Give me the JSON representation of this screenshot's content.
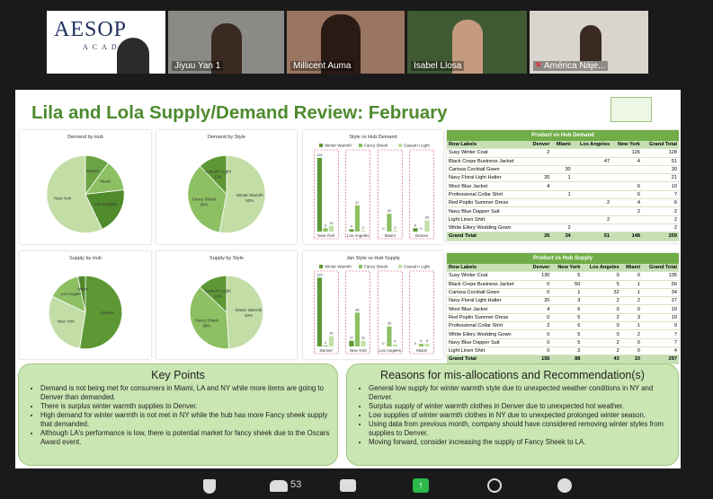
{
  "meeting": {
    "logo": {
      "name": "AESOP",
      "sub": "ACADEMY"
    },
    "participants": [
      "Jiyuu Yan 1",
      "Millicent Auma",
      "Isabel Llosa",
      "América Náje..."
    ],
    "participant_count": 53
  },
  "slide": {
    "title": "Lila and Lola Supply/Demand Review: February",
    "demand_table": {
      "title": "Product vs Hub Demand",
      "header": [
        "Row Labels",
        "Denver",
        "Miami",
        "Los Angeles",
        "New York",
        "Grand Total"
      ],
      "rows": [
        [
          "Susy Winter Coat",
          2,
          null,
          null,
          126,
          128
        ],
        [
          "Black Crepe Business Jacket",
          null,
          null,
          47,
          4,
          51
        ],
        [
          "Carissa Cocktail Gown",
          null,
          30,
          null,
          null,
          30
        ],
        [
          "Navy Floral Light Halter",
          20,
          1,
          null,
          null,
          21
        ],
        [
          "Wool Blue Jacket",
          4,
          null,
          null,
          6,
          10
        ],
        [
          "Professional Collar Shirt",
          null,
          1,
          null,
          6,
          7
        ],
        [
          "Red Poplin Summer Dress",
          null,
          null,
          2,
          4,
          6
        ],
        [
          "Navy Blue Dapper Suit",
          null,
          null,
          null,
          2,
          2
        ],
        [
          "Light Linen Shirt",
          null,
          null,
          2,
          null,
          2
        ],
        [
          "White Ellery Wedding Gown",
          null,
          2,
          null,
          null,
          2
        ]
      ],
      "total": [
        "Grand Total",
        26,
        34,
        51,
        148,
        259
      ]
    },
    "supply_table": {
      "title": "Product vs Hub Supply",
      "header": [
        "Row Labels",
        "Denver",
        "New York",
        "Los Angeles",
        "Miami",
        "Grand Total"
      ],
      "rows": [
        [
          "Susy Winter Coat",
          130,
          5,
          0,
          0,
          135
        ],
        [
          "Black Crepe Business Jacket",
          0,
          50,
          5,
          1,
          56
        ],
        [
          "Carissa Cocktail Gown",
          0,
          1,
          32,
          1,
          34
        ],
        [
          "Navy Floral Light Halter",
          20,
          3,
          2,
          2,
          27
        ],
        [
          "Wool Blue Jacket",
          4,
          6,
          0,
          0,
          10
        ],
        [
          "Red Poplin Summer Dress",
          0,
          5,
          2,
          3,
          10
        ],
        [
          "Professional Collar Shirt",
          2,
          6,
          0,
          1,
          9
        ],
        [
          "White Ellery Wedding Gown",
          0,
          5,
          0,
          2,
          7
        ],
        [
          "Navy Blue Dapper Suit",
          0,
          5,
          2,
          0,
          7
        ],
        [
          "Light Linen Shirt",
          0,
          2,
          2,
          0,
          4
        ]
      ],
      "total": [
        "Grand Total",
        156,
        88,
        43,
        10,
        297
      ]
    },
    "key_points": {
      "title": "Key Points",
      "items": [
        "Demand is not being met for consumers in Miami, LA and NY while more items are going to Denver than demanded.",
        "There is surplus winter warmth supplies to Denver.",
        "High demand for winter warmth is not met in NY while the hub has more Fancy sheek supply that demanded.",
        "Although LA's performance is low, there is potential market for fancy sheek due to the Oscars Award event."
      ]
    },
    "reasons": {
      "title": "Reasons for mis-allocations and Recommendation(s)",
      "items": [
        "General low supply for winter warmth style due to unexpected weather conditions in NY and Denver.",
        "Surplus supply of winter warmth clothes in Denver due to unexpected hot weather.",
        "Low supplies of winter warmth clothes in NY due to unexpected prolonged winter season.",
        "Using data from previous month, company should have considered removing winter styles from supplies to Denver.",
        "Moving forward, consider increasing the supply of Fancy Sheek to LA."
      ]
    }
  },
  "chart_data": [
    {
      "type": "pie",
      "title": "Demand by Hub",
      "categories": [
        "Denver",
        "Miami",
        "Los Angeles",
        "New York"
      ],
      "values": [
        26,
        34,
        51,
        148
      ],
      "colors": [
        "#6aa343",
        "#8cc063",
        "#4f8a2b",
        "#c2dea6"
      ]
    },
    {
      "type": "pie",
      "title": "Demand by Style",
      "categories": [
        "Winter Warmth",
        "Fancy Sheek",
        "Casual n Light"
      ],
      "values": [
        53,
        35,
        12
      ],
      "value_labels": [
        "53%",
        "35%",
        "12%"
      ],
      "colors": [
        "#c2dea6",
        "#8cc063",
        "#5d9835"
      ]
    },
    {
      "type": "bar",
      "title": "Style vs Hub Demand",
      "categories": [
        "New York",
        "Los Angeles",
        "Miami",
        "Denver"
      ],
      "ylim": [
        0,
        140
      ],
      "series": [
        {
          "name": "Winter Warmth",
          "color": "#5d9835",
          "values": [
            132,
            4,
            0,
            6
          ]
        },
        {
          "name": "Fancy Sheek",
          "color": "#8cc063",
          "values": [
            6,
            47,
            32,
            0
          ]
        },
        {
          "name": "Casual n Light",
          "color": "#c2dea6",
          "values": [
            10,
            2,
            2,
            20
          ]
        }
      ]
    },
    {
      "type": "pie",
      "title": "Supply by Hub",
      "categories": [
        "Denver",
        "New York",
        "Los Angeles",
        "Miami"
      ],
      "values": [
        156,
        88,
        43,
        10
      ],
      "colors": [
        "#5d9835",
        "#c2dea6",
        "#8cc063",
        "#4f8a2b"
      ]
    },
    {
      "type": "pie",
      "title": "Supply by Style",
      "categories": [
        "Winter Warmth",
        "Fancy Sheek",
        "Casual n Light"
      ],
      "values": [
        49,
        38,
        13
      ],
      "value_labels": [
        "49%",
        "38%",
        "13%"
      ],
      "colors": [
        "#c2dea6",
        "#8cc063",
        "#5d9835"
      ]
    },
    {
      "type": "bar",
      "title": "Jan Style vs Hub Supply",
      "categories": [
        "Denver",
        "New York",
        "Los Angeles",
        "Miami"
      ],
      "ylim": [
        0,
        140
      ],
      "series": [
        {
          "name": "Winter Warmth",
          "color": "#5d9835",
          "values": [
            134,
            11,
            0,
            0
          ]
        },
        {
          "name": "Fancy Sheek",
          "color": "#8cc063",
          "values": [
            2,
            66,
            39,
            5
          ]
        },
        {
          "name": "Casual n Light",
          "color": "#c2dea6",
          "values": [
            20,
            11,
            4,
            5
          ]
        }
      ]
    }
  ]
}
